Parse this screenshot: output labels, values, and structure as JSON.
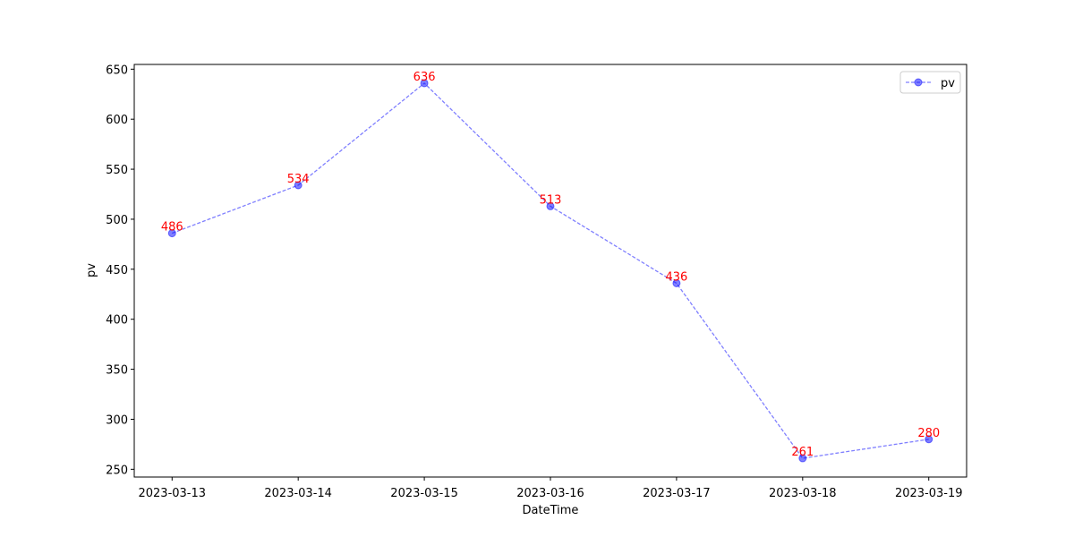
{
  "chart_data": {
    "type": "line",
    "xlabel": "DateTime",
    "ylabel": "pv",
    "categories": [
      "2023-03-13",
      "2023-03-14",
      "2023-03-15",
      "2023-03-16",
      "2023-03-17",
      "2023-03-18",
      "2023-03-19"
    ],
    "series": [
      {
        "name": "pv",
        "color": "#0000ff",
        "label_color": "#ff0000",
        "values": [
          486,
          534,
          636,
          513,
          436,
          261,
          280
        ]
      }
    ],
    "ylim": [
      242.25,
      654.75
    ],
    "yticks": [
      250,
      300,
      350,
      400,
      450,
      500,
      550,
      600,
      650
    ],
    "grid": false,
    "legend": "upper right"
  }
}
